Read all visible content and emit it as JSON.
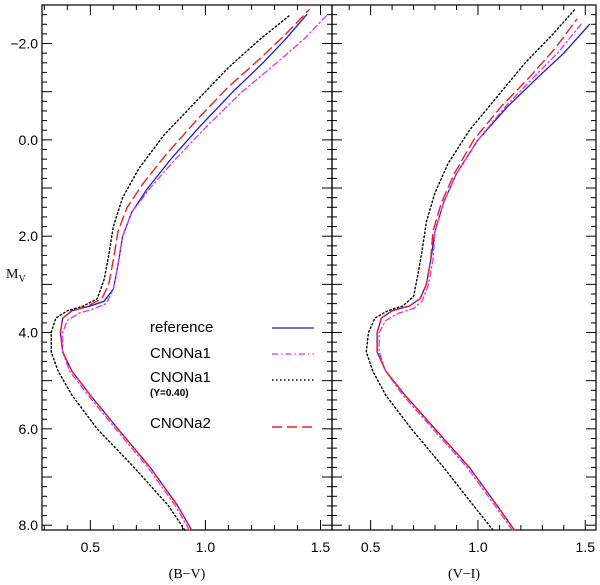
{
  "chart_data": {
    "type": "line",
    "ylabel_main": "M",
    "ylabel_sub": "V",
    "ylim": [
      8.1,
      -2.8
    ],
    "yticks": [
      -2.0,
      0.0,
      2.0,
      4.0,
      6.0,
      8.0
    ],
    "ytick_labels": [
      "−2.0",
      "0.0",
      "2.0",
      "4.0",
      "6.0",
      "8.0"
    ],
    "ymin_minor": -2.8,
    "ymax_minor": 8.1,
    "legend": {
      "items": [
        {
          "label": "reference",
          "sub": "",
          "series": "reference"
        },
        {
          "label": "CNONa1",
          "sub": "",
          "series": "CNONa1"
        },
        {
          "label": "CNONa1",
          "sub": "(Y=0.40)",
          "series": "CNONa1_Y040"
        },
        {
          "label": "CNONa2",
          "sub": "",
          "series": "CNONa2"
        }
      ]
    },
    "styles": {
      "reference": {
        "color": "#1a1acc",
        "dash": "",
        "width": 1.3
      },
      "CNONa1": {
        "color": "#e033e0",
        "dash": "6 3 1.5 3",
        "width": 1.3
      },
      "CNONa1_Y040": {
        "color": "#000000",
        "dash": "1.5 2.5",
        "width": 1.4
      },
      "CNONa2": {
        "color": "#e82020",
        "dash": "10 5",
        "width": 1.4
      }
    },
    "panels": [
      {
        "xlabel": "(B−V)",
        "xlim": [
          0.29,
          1.55
        ],
        "xticks": [
          0.5,
          1.0,
          1.5
        ],
        "xtick_labels": [
          "0.5",
          "1.0",
          "1.5"
        ],
        "series": [
          {
            "name": "reference",
            "points": [
              [
                0.94,
                8.1
              ],
              [
                0.88,
                7.6
              ],
              [
                0.76,
                6.8
              ],
              [
                0.62,
                6.0
              ],
              [
                0.5,
                5.3
              ],
              [
                0.42,
                4.8
              ],
              [
                0.38,
                4.4
              ],
              [
                0.37,
                4.0
              ],
              [
                0.38,
                3.7
              ],
              [
                0.42,
                3.55
              ],
              [
                0.5,
                3.45
              ],
              [
                0.56,
                3.35
              ],
              [
                0.6,
                3.1
              ],
              [
                0.62,
                2.6
              ],
              [
                0.64,
                2.0
              ],
              [
                0.68,
                1.5
              ],
              [
                0.75,
                1.0
              ],
              [
                0.85,
                0.4
              ],
              [
                0.98,
                -0.3
              ],
              [
                1.12,
                -1.0
              ],
              [
                1.25,
                -1.6
              ],
              [
                1.35,
                -2.1
              ],
              [
                1.44,
                -2.6
              ]
            ]
          },
          {
            "name": "CNONa1",
            "points": [
              [
                0.93,
                8.1
              ],
              [
                0.87,
                7.6
              ],
              [
                0.75,
                6.8
              ],
              [
                0.61,
                6.0
              ],
              [
                0.49,
                5.3
              ],
              [
                0.41,
                4.8
              ],
              [
                0.38,
                4.4
              ],
              [
                0.38,
                4.0
              ],
              [
                0.4,
                3.75
              ],
              [
                0.45,
                3.6
              ],
              [
                0.52,
                3.5
              ],
              [
                0.57,
                3.4
              ],
              [
                0.6,
                3.1
              ],
              [
                0.62,
                2.6
              ],
              [
                0.64,
                2.0
              ],
              [
                0.68,
                1.5
              ],
              [
                0.76,
                1.0
              ],
              [
                0.87,
                0.4
              ],
              [
                1.01,
                -0.3
              ],
              [
                1.16,
                -1.0
              ],
              [
                1.31,
                -1.6
              ],
              [
                1.43,
                -2.1
              ],
              [
                1.53,
                -2.6
              ]
            ]
          },
          {
            "name": "CNONa1_Y040",
            "points": [
              [
                0.91,
                8.1
              ],
              [
                0.84,
                7.6
              ],
              [
                0.69,
                6.8
              ],
              [
                0.53,
                6.0
              ],
              [
                0.42,
                5.3
              ],
              [
                0.36,
                4.8
              ],
              [
                0.33,
                4.4
              ],
              [
                0.33,
                4.0
              ],
              [
                0.35,
                3.7
              ],
              [
                0.4,
                3.55
              ],
              [
                0.47,
                3.45
              ],
              [
                0.53,
                3.3
              ],
              [
                0.56,
                2.9
              ],
              [
                0.58,
                2.4
              ],
              [
                0.6,
                1.8
              ],
              [
                0.64,
                1.2
              ],
              [
                0.71,
                0.6
              ],
              [
                0.82,
                -0.1
              ],
              [
                0.96,
                -0.8
              ],
              [
                1.1,
                -1.5
              ],
              [
                1.24,
                -2.1
              ],
              [
                1.37,
                -2.6
              ]
            ]
          },
          {
            "name": "CNONa2",
            "points": [
              [
                0.94,
                8.1
              ],
              [
                0.88,
                7.6
              ],
              [
                0.76,
                6.8
              ],
              [
                0.62,
                6.0
              ],
              [
                0.5,
                5.3
              ],
              [
                0.42,
                4.8
              ],
              [
                0.38,
                4.4
              ],
              [
                0.37,
                4.0
              ],
              [
                0.38,
                3.7
              ],
              [
                0.42,
                3.55
              ],
              [
                0.49,
                3.45
              ],
              [
                0.55,
                3.3
              ],
              [
                0.58,
                3.0
              ],
              [
                0.6,
                2.5
              ],
              [
                0.62,
                1.9
              ],
              [
                0.66,
                1.4
              ],
              [
                0.73,
                0.9
              ],
              [
                0.83,
                0.3
              ],
              [
                0.96,
                -0.4
              ],
              [
                1.1,
                -1.1
              ],
              [
                1.24,
                -1.7
              ],
              [
                1.35,
                -2.2
              ],
              [
                1.45,
                -2.7
              ]
            ]
          }
        ]
      },
      {
        "xlabel": "(V−I)",
        "xlim": [
          0.32,
          1.55
        ],
        "xticks": [
          0.5,
          1.0,
          1.5
        ],
        "xtick_labels": [
          "0.5",
          "1.0",
          "1.5"
        ],
        "series": [
          {
            "name": "reference",
            "points": [
              [
                1.17,
                8.1
              ],
              [
                1.09,
                7.6
              ],
              [
                0.96,
                6.8
              ],
              [
                0.8,
                6.0
              ],
              [
                0.66,
                5.3
              ],
              [
                0.57,
                4.8
              ],
              [
                0.53,
                4.4
              ],
              [
                0.53,
                4.0
              ],
              [
                0.55,
                3.7
              ],
              [
                0.6,
                3.55
              ],
              [
                0.68,
                3.45
              ],
              [
                0.73,
                3.3
              ],
              [
                0.76,
                3.0
              ],
              [
                0.78,
                2.5
              ],
              [
                0.8,
                1.9
              ],
              [
                0.84,
                1.3
              ],
              [
                0.9,
                0.7
              ],
              [
                1.0,
                0.0
              ],
              [
                1.14,
                -0.7
              ],
              [
                1.28,
                -1.3
              ],
              [
                1.4,
                -1.8
              ],
              [
                1.52,
                -2.4
              ]
            ]
          },
          {
            "name": "CNONa1",
            "points": [
              [
                1.16,
                8.1
              ],
              [
                1.08,
                7.6
              ],
              [
                0.95,
                6.8
              ],
              [
                0.79,
                6.0
              ],
              [
                0.65,
                5.3
              ],
              [
                0.57,
                4.8
              ],
              [
                0.54,
                4.4
              ],
              [
                0.54,
                4.0
              ],
              [
                0.57,
                3.75
              ],
              [
                0.63,
                3.6
              ],
              [
                0.7,
                3.5
              ],
              [
                0.74,
                3.35
              ],
              [
                0.77,
                3.0
              ],
              [
                0.79,
                2.5
              ],
              [
                0.8,
                1.9
              ],
              [
                0.84,
                1.3
              ],
              [
                0.9,
                0.7
              ],
              [
                1.0,
                0.0
              ],
              [
                1.13,
                -0.7
              ],
              [
                1.26,
                -1.3
              ],
              [
                1.37,
                -1.8
              ],
              [
                1.48,
                -2.4
              ]
            ]
          },
          {
            "name": "CNONa1_Y040",
            "points": [
              [
                1.07,
                8.1
              ],
              [
                0.98,
                7.6
              ],
              [
                0.84,
                6.8
              ],
              [
                0.69,
                6.0
              ],
              [
                0.57,
                5.3
              ],
              [
                0.51,
                4.8
              ],
              [
                0.48,
                4.4
              ],
              [
                0.49,
                4.0
              ],
              [
                0.52,
                3.7
              ],
              [
                0.58,
                3.55
              ],
              [
                0.65,
                3.45
              ],
              [
                0.7,
                3.25
              ],
              [
                0.72,
                2.8
              ],
              [
                0.74,
                2.3
              ],
              [
                0.76,
                1.7
              ],
              [
                0.8,
                1.1
              ],
              [
                0.86,
                0.5
              ],
              [
                0.96,
                -0.2
              ],
              [
                1.09,
                -0.9
              ],
              [
                1.22,
                -1.6
              ],
              [
                1.35,
                -2.2
              ],
              [
                1.45,
                -2.7
              ]
            ]
          },
          {
            "name": "CNONa2",
            "points": [
              [
                1.17,
                8.1
              ],
              [
                1.09,
                7.6
              ],
              [
                0.96,
                6.8
              ],
              [
                0.8,
                6.0
              ],
              [
                0.66,
                5.3
              ],
              [
                0.57,
                4.8
              ],
              [
                0.53,
                4.4
              ],
              [
                0.53,
                4.0
              ],
              [
                0.55,
                3.7
              ],
              [
                0.6,
                3.55
              ],
              [
                0.68,
                3.45
              ],
              [
                0.73,
                3.3
              ],
              [
                0.76,
                3.0
              ],
              [
                0.78,
                2.5
              ],
              [
                0.79,
                1.9
              ],
              [
                0.83,
                1.3
              ],
              [
                0.89,
                0.7
              ],
              [
                0.98,
                0.0
              ],
              [
                1.11,
                -0.7
              ],
              [
                1.24,
                -1.3
              ],
              [
                1.36,
                -1.9
              ],
              [
                1.46,
                -2.5
              ]
            ]
          }
        ]
      }
    ]
  }
}
